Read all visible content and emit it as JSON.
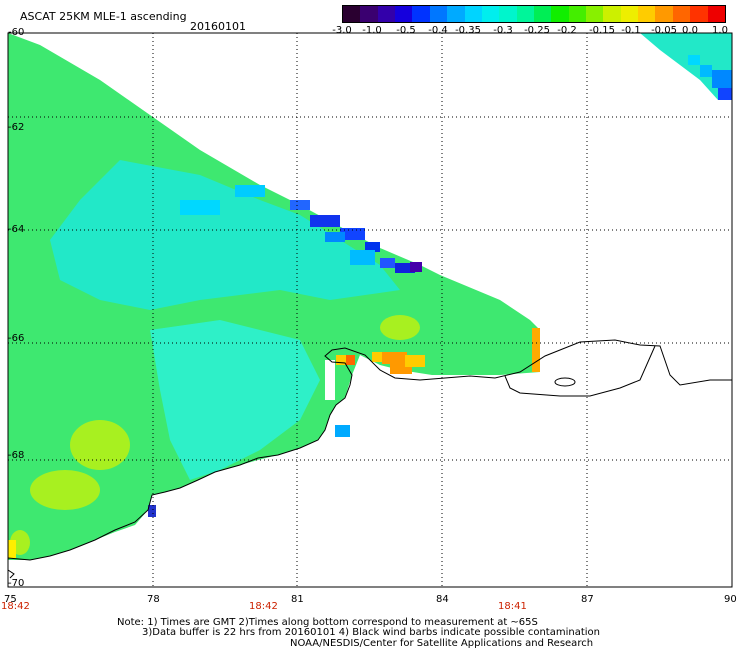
{
  "header": {
    "title": "ASCAT 25KM MLE-1 ascending",
    "date": "20160101"
  },
  "colorbar": {
    "colors": [
      "#2a0030",
      "#3a0070",
      "#3300aa",
      "#1500dd",
      "#0033ff",
      "#0077ff",
      "#00aaff",
      "#00d4ff",
      "#00eeee",
      "#00f5cc",
      "#00f59a",
      "#00ee55",
      "#11ee00",
      "#44ee00",
      "#88f000",
      "#ccf000",
      "#eeee00",
      "#ffcc00",
      "#ff9900",
      "#ff6600",
      "#ff3300",
      "#ee0000"
    ],
    "ticks": [
      "-3.0",
      "-1.0",
      "-0.5",
      "-0.4",
      "-0.35",
      "-0.3",
      "-0.25",
      "-0.2",
      "-0.15",
      "-0.1",
      "-0.05",
      "0.0",
      "1.0"
    ]
  },
  "axes": {
    "lat_labels": [
      "-60",
      "-62",
      "-64",
      "-66",
      "-68",
      "-70"
    ],
    "lon_labels": [
      "75",
      "78",
      "81",
      "84",
      "87",
      "90"
    ],
    "time_labels": [
      "18:42",
      "18:42",
      "18:41"
    ]
  },
  "notes": {
    "line1": "Note: 1) Times are GMT 2)Times along bottom correspond to measurement at ~65S",
    "line2": "3)Data buffer is 22 hrs from 20160101 4) Black wind barbs indicate possible contamination",
    "line3": "NOAA/NESDIS/Center for Satellite Applications and Research"
  }
}
